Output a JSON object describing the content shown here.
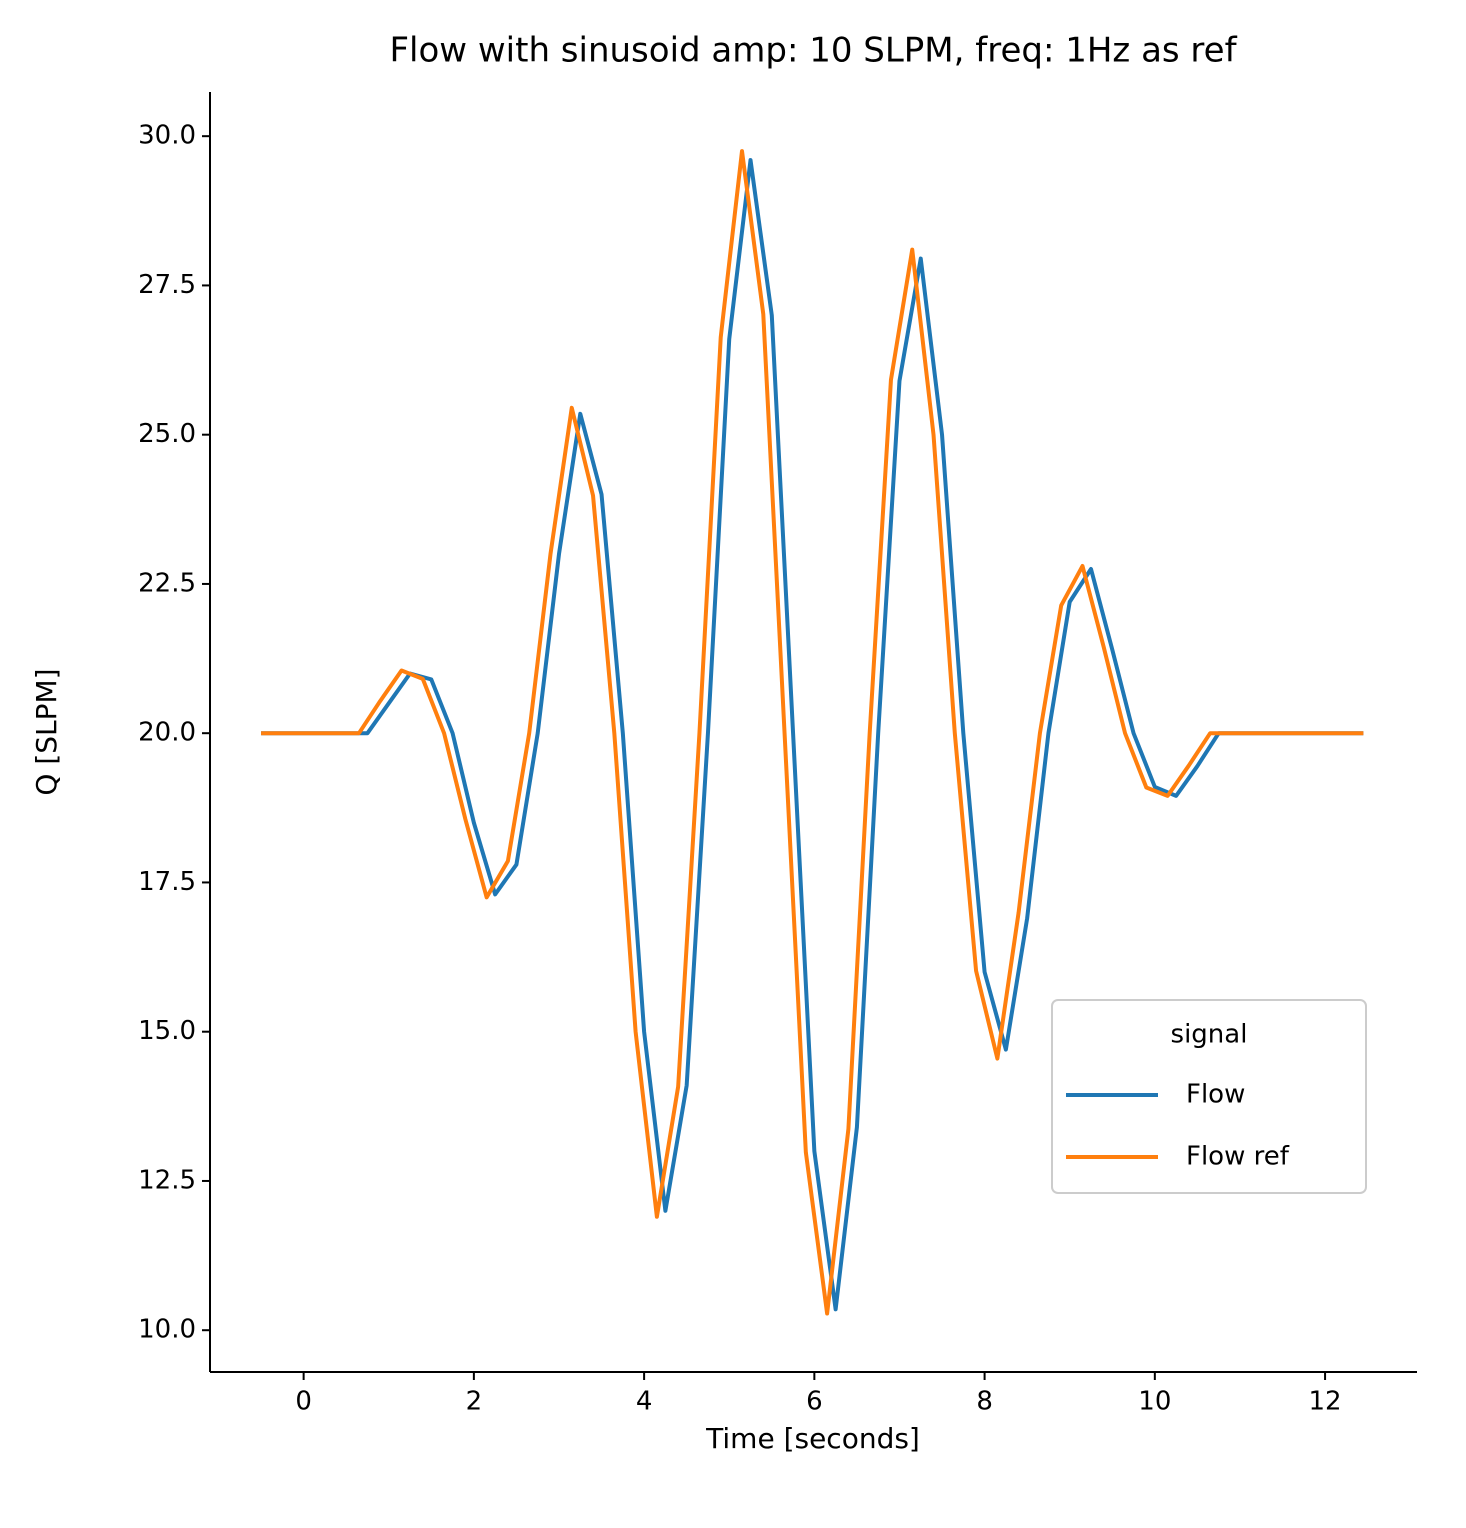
{
  "chart_data": {
    "type": "line",
    "title": "Flow with sinusoid amp: 10 SLPM, freq: 1Hz as ref",
    "xlabel": "Time [seconds]",
    "ylabel": "Q [SLPM]",
    "legend_title": "signal",
    "legend": "lower right",
    "xlim": [
      -1.1,
      13.08
    ],
    "ylim": [
      9.3,
      30.74
    ],
    "xticks": [
      0,
      2,
      4,
      6,
      8,
      10,
      12
    ],
    "yticks": [
      {
        "value": 10,
        "label": "10.0"
      },
      12.5,
      {
        "value": 15,
        "label": "15.0"
      },
      17.5,
      {
        "value": 20,
        "label": "20.0"
      },
      22.5,
      {
        "value": 25,
        "label": "25.0"
      },
      27.5,
      {
        "value": 30,
        "label": "30.0"
      }
    ],
    "series": [
      {
        "name": "Flow",
        "color": "#1f77b4",
        "x": [
          -0.5,
          0.6,
          0.75,
          1.0,
          1.25,
          1.5,
          1.75,
          2.0,
          2.25,
          2.5,
          2.75,
          3.0,
          3.25,
          3.5,
          3.75,
          4.0,
          4.25,
          4.5,
          4.75,
          5.0,
          5.25,
          5.5,
          5.75,
          6.0,
          6.25,
          6.5,
          6.75,
          7.0,
          7.25,
          7.5,
          7.75,
          8.0,
          8.25,
          8.5,
          8.75,
          9.0,
          9.25,
          9.5,
          9.75,
          10.0,
          10.25,
          10.5,
          10.75,
          11.0,
          12.45
        ],
        "values": [
          20,
          20,
          20,
          20.5,
          21.0,
          20.9,
          20.0,
          18.5,
          17.3,
          17.8,
          20.0,
          23.0,
          25.35,
          24.0,
          20.0,
          15.0,
          12.0,
          14.1,
          20.0,
          26.6,
          29.6,
          27.0,
          20.0,
          13.0,
          10.35,
          13.4,
          20.0,
          25.9,
          27.95,
          25.0,
          20.0,
          16.0,
          14.7,
          16.9,
          20.0,
          22.2,
          22.75,
          21.4,
          20.0,
          19.1,
          18.95,
          19.45,
          20.0,
          20.0,
          20.0
        ]
      },
      {
        "name": "Flow ref",
        "color": "#ff7f0e",
        "x": [
          -0.5,
          0.5,
          0.65,
          0.9,
          1.15,
          1.4,
          1.65,
          1.9,
          2.15,
          2.4,
          2.65,
          2.9,
          3.15,
          3.4,
          3.65,
          3.9,
          4.15,
          4.4,
          4.65,
          4.9,
          5.15,
          5.4,
          5.65,
          5.9,
          6.15,
          6.4,
          6.65,
          6.9,
          7.15,
          7.4,
          7.65,
          7.9,
          8.15,
          8.4,
          8.65,
          8.9,
          9.15,
          9.4,
          9.65,
          9.9,
          10.15,
          10.4,
          10.65,
          10.9,
          12.45
        ],
        "values": [
          20,
          20,
          20,
          20.54,
          21.05,
          20.91,
          20.0,
          18.56,
          17.25,
          17.86,
          20.0,
          23.0,
          25.45,
          23.98,
          20.0,
          15.0,
          11.9,
          14.08,
          20.0,
          26.63,
          29.75,
          27.02,
          20.0,
          12.98,
          10.28,
          13.37,
          20.0,
          25.92,
          28.1,
          25.0,
          20.0,
          16.02,
          14.55,
          17.0,
          20.0,
          22.14,
          22.8,
          21.44,
          20.0,
          19.09,
          18.95,
          19.46,
          20.0,
          20.0,
          20.0
        ]
      }
    ]
  }
}
